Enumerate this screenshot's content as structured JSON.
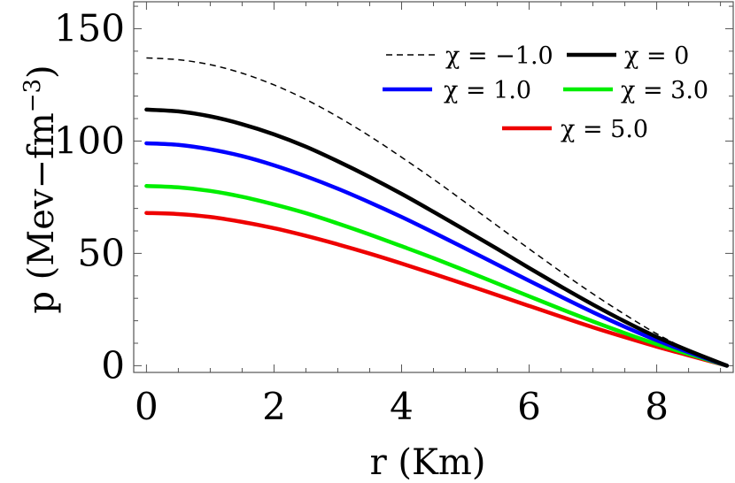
{
  "chart_data": {
    "type": "line",
    "title": "",
    "xlabel": "r (Km)",
    "ylabel": "p (Mev−fm",
    "ylabel_sup": "−3",
    "ylabel_close": ")",
    "xlim": [
      -0.2,
      9.2
    ],
    "ylim": [
      -3,
      162
    ],
    "x_ticks": [
      0,
      2,
      4,
      6,
      8
    ],
    "y_ticks": [
      0,
      50,
      100,
      150
    ],
    "x_tick_labels": [
      "0",
      "2",
      "4",
      "6",
      "8"
    ],
    "y_tick_labels": [
      "0",
      "50",
      "100",
      "150"
    ],
    "grid": false,
    "legend_position": "top-right",
    "series": [
      {
        "name": "χ = −1.0",
        "color": "#000000",
        "style": "dashed",
        "x": [
          0,
          0.5,
          1,
          1.5,
          2,
          2.5,
          3,
          3.5,
          4,
          4.5,
          5,
          5.5,
          6,
          6.5,
          7,
          7.5,
          8,
          8.5,
          9.1
        ],
        "y": [
          137,
          136.2,
          134,
          130.2,
          125,
          118.5,
          110.8,
          102.2,
          92.8,
          83,
          72.7,
          62.3,
          52,
          41.8,
          32,
          22.8,
          14.2,
          7,
          0
        ]
      },
      {
        "name": "χ = 0",
        "color": "#000000",
        "style": "solid",
        "x": [
          0,
          0.5,
          1,
          1.5,
          2,
          2.5,
          3,
          3.5,
          4,
          4.5,
          5,
          5.5,
          6,
          6.5,
          7,
          7.5,
          8,
          8.5,
          9.1
        ],
        "y": [
          114,
          113.2,
          111,
          107.5,
          103,
          97.5,
          91,
          84,
          76.5,
          68.5,
          60.3,
          52,
          43.5,
          35.2,
          27.2,
          19.7,
          12.8,
          6.7,
          0
        ]
      },
      {
        "name": "χ = 1.0",
        "color": "#0000ff",
        "style": "solid",
        "x": [
          0,
          0.5,
          1,
          1.5,
          2,
          2.5,
          3,
          3.5,
          4,
          4.5,
          5,
          5.5,
          6,
          6.5,
          7,
          7.5,
          8,
          8.5,
          9.1
        ],
        "y": [
          99,
          98.3,
          96.3,
          93.3,
          89.2,
          84.3,
          78.8,
          72.7,
          66.2,
          59.3,
          52.2,
          45,
          37.8,
          30.7,
          23.8,
          17.3,
          11.3,
          6,
          0
        ]
      },
      {
        "name": "χ = 3.0",
        "color": "#00ee00",
        "style": "solid",
        "x": [
          0,
          0.5,
          1,
          1.5,
          2,
          2.5,
          3,
          3.5,
          4,
          4.5,
          5,
          5.5,
          6,
          6.5,
          7,
          7.5,
          8,
          8.5,
          9.1
        ],
        "y": [
          80,
          79.4,
          77.8,
          75.2,
          71.8,
          67.9,
          63.3,
          58.4,
          53.2,
          47.9,
          42.3,
          36.6,
          30.9,
          25.2,
          19.7,
          14.5,
          9.6,
          5.2,
          0
        ]
      },
      {
        "name": "χ = 5.0",
        "color": "#ee0000",
        "style": "solid",
        "x": [
          0,
          0.5,
          1,
          1.5,
          2,
          2.5,
          3,
          3.5,
          4,
          4.5,
          5,
          5.5,
          6,
          6.5,
          7,
          7.5,
          8,
          8.5,
          9.1
        ],
        "y": [
          68,
          67.5,
          66.2,
          64,
          61.2,
          57.8,
          54,
          49.9,
          45.5,
          40.9,
          36.2,
          31.4,
          26.6,
          21.8,
          17.1,
          12.7,
          8.5,
          4.6,
          0
        ]
      }
    ]
  }
}
